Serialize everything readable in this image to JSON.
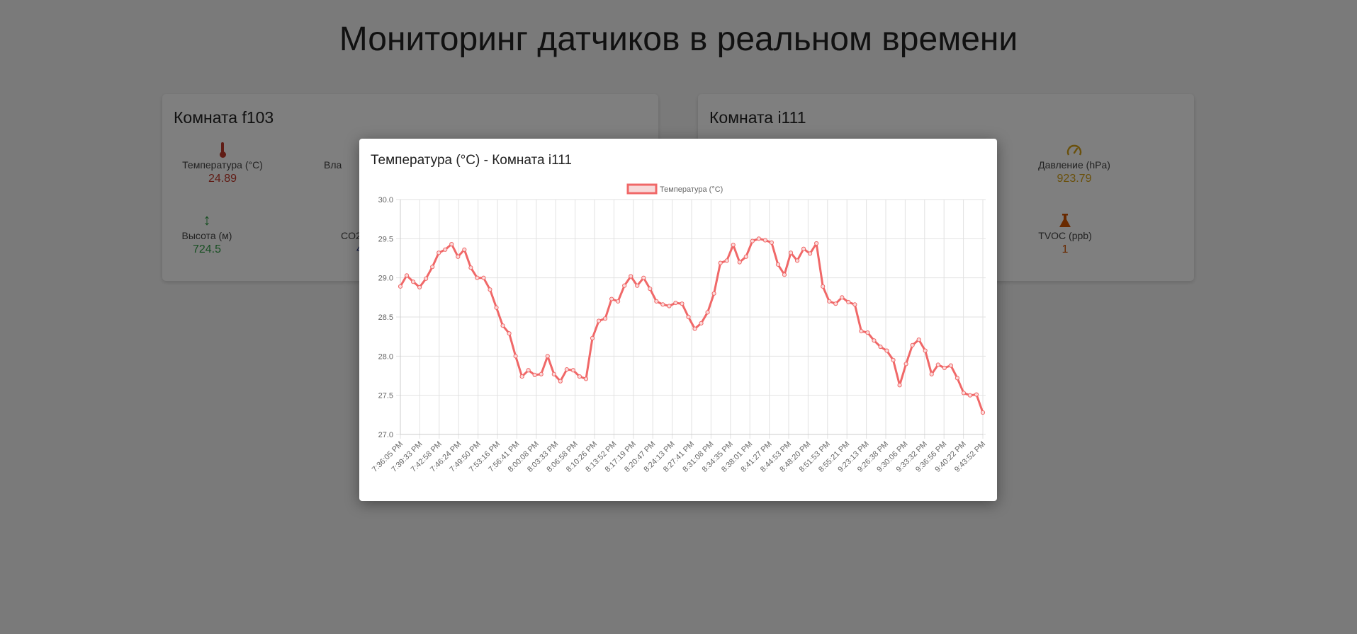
{
  "page": {
    "title": "Мониторинг датчиков в реальном времени"
  },
  "rooms": [
    {
      "name": "Комната f103",
      "sensors": [
        {
          "label": "Температура (°C)",
          "value": "24.89",
          "icon": "thermometer-icon",
          "color": "#c0392b"
        },
        {
          "label": "Вла",
          "value": "",
          "icon": "",
          "color": "#444444"
        },
        {
          "label": "Высота (м)",
          "value": "724.5",
          "icon": "vertical-arrows-icon",
          "color": "#2e9e44"
        },
        {
          "label": "CO2",
          "value": "4",
          "icon": "",
          "color": "#2c3e8f"
        }
      ]
    },
    {
      "name": "Комната i111",
      "sensors": [
        {
          "label": "Давление (hPa)",
          "value": "923.79",
          "icon": "gauge-icon",
          "color": "#d4a017"
        },
        {
          "label": "TVOC (ppb)",
          "value": "1",
          "icon": "flask-icon",
          "color": "#d35400"
        }
      ]
    }
  ],
  "modal": {
    "title": "Температура (°C) - Комната i111"
  },
  "chart_data": {
    "type": "line",
    "legend": {
      "label": "Температура (°C)",
      "position": "top"
    },
    "color": "#f06868",
    "ylim": [
      27.0,
      30.0
    ],
    "yticks": [
      "30.0",
      "29.5",
      "29.0",
      "28.5",
      "28.0",
      "27.5",
      "27.0"
    ],
    "grid": true,
    "xtick_labels": [
      "7:36:05 PM",
      "7:39:33 PM",
      "7:42:58 PM",
      "7:46:24 PM",
      "7:49:50 PM",
      "7:53:16 PM",
      "7:56:41 PM",
      "8:00:08 PM",
      "8:03:33 PM",
      "8:06:58 PM",
      "8:10:26 PM",
      "8:13:52 PM",
      "8:17:19 PM",
      "8:20:47 PM",
      "8:24:13 PM",
      "8:27:41 PM",
      "8:31:08 PM",
      "8:34:35 PM",
      "8:38:01 PM",
      "8:41:27 PM",
      "8:44:53 PM",
      "8:48:20 PM",
      "8:51:53 PM",
      "8:55:21 PM",
      "9:23:13 PM",
      "9:26:38 PM",
      "9:30:06 PM",
      "9:33:32 PM",
      "9:36:56 PM",
      "9:40:22 PM",
      "9:43:52 PM"
    ],
    "values": [
      28.89,
      29.03,
      28.95,
      28.88,
      28.99,
      29.14,
      29.32,
      29.36,
      29.43,
      29.27,
      29.36,
      29.13,
      29.0,
      29.0,
      28.85,
      28.62,
      28.39,
      28.29,
      28.0,
      27.74,
      27.82,
      27.76,
      27.77,
      28.0,
      27.77,
      27.68,
      27.83,
      27.82,
      27.74,
      27.71,
      28.23,
      28.45,
      28.48,
      28.73,
      28.7,
      28.9,
      29.02,
      28.9,
      29.0,
      28.86,
      28.7,
      28.66,
      28.64,
      28.68,
      28.67,
      28.5,
      28.35,
      28.42,
      28.56,
      28.8,
      29.19,
      29.22,
      29.42,
      29.2,
      29.27,
      29.47,
      29.5,
      29.48,
      29.45,
      29.17,
      29.04,
      29.32,
      29.22,
      29.37,
      29.31,
      29.44,
      28.89,
      28.7,
      28.67,
      28.75,
      28.69,
      28.66,
      28.32,
      28.3,
      28.2,
      28.12,
      28.07,
      27.95,
      27.63,
      27.9,
      28.14,
      28.21,
      28.07,
      27.77,
      27.89,
      27.85,
      27.88,
      27.72,
      27.53,
      27.5,
      27.51,
      27.28
    ]
  }
}
